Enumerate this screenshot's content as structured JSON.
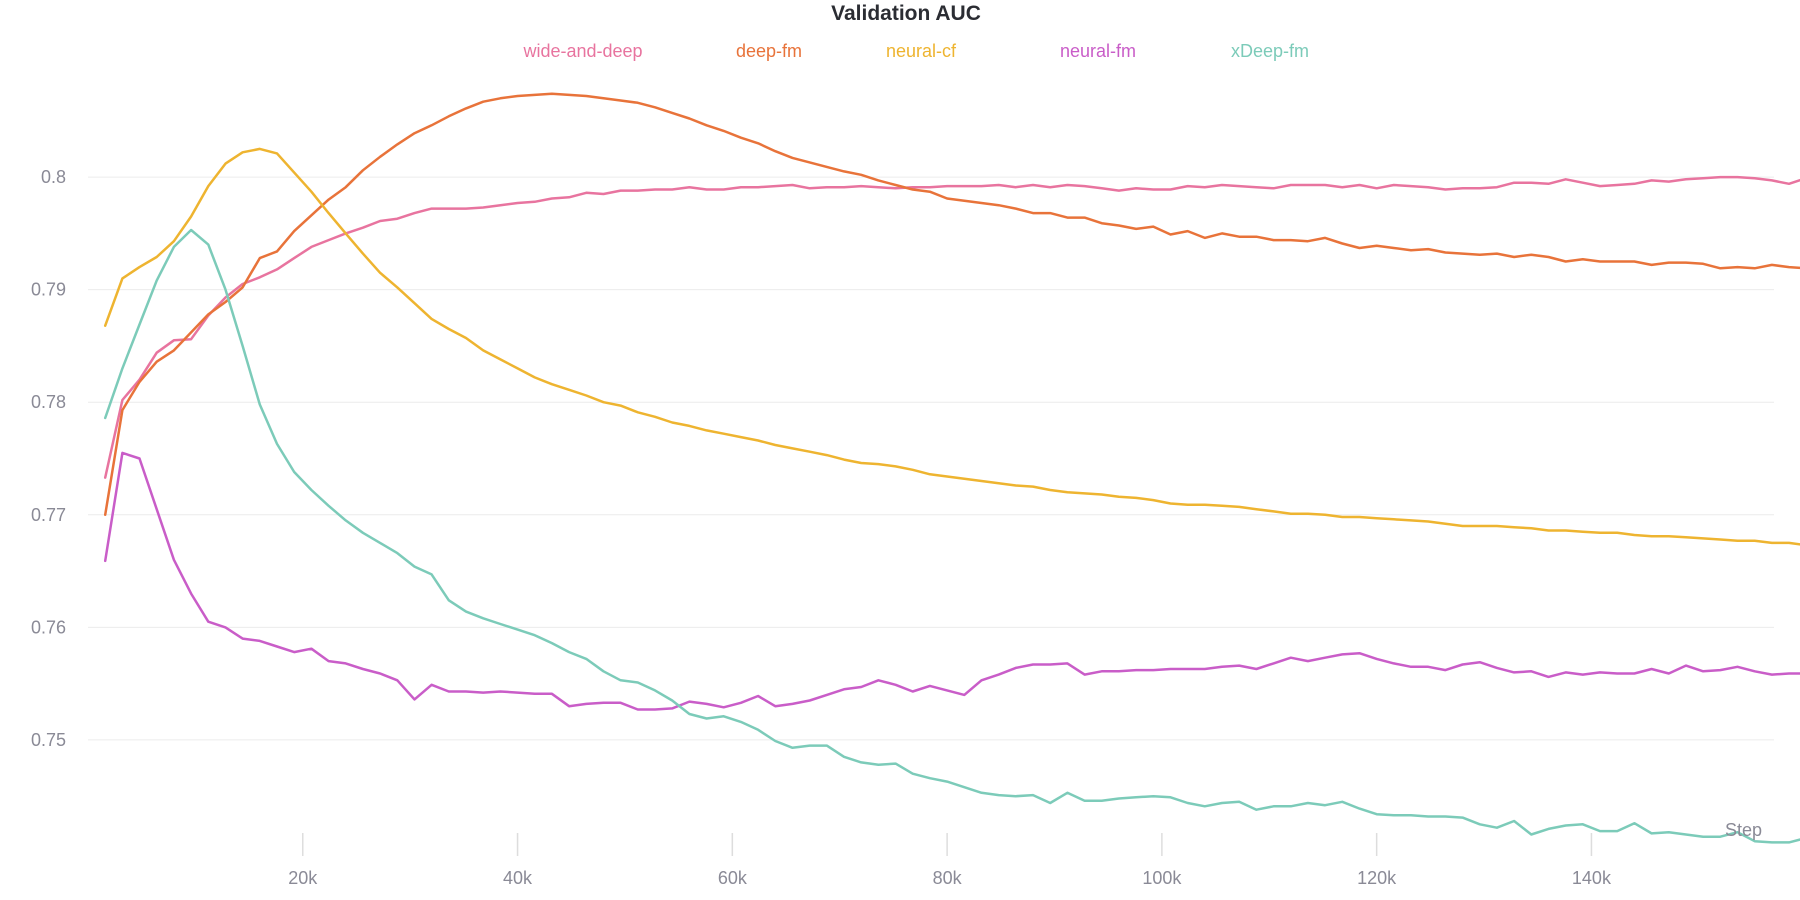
{
  "chart_data": {
    "type": "line",
    "title": "Validation AUC",
    "xlabel": "Step",
    "ylabel": "",
    "xlim": [
      0,
      157000
    ],
    "ylim": [
      0.7388,
      0.8104
    ],
    "grid": true,
    "legend_position": "top-center",
    "x_ticks": [
      20000,
      40000,
      60000,
      80000,
      100000,
      120000,
      140000
    ],
    "x_tick_labels": [
      "20k",
      "40k",
      "60k",
      "80k",
      "100k",
      "120k",
      "140k"
    ],
    "y_ticks": [
      0.75,
      0.76,
      0.77,
      0.78,
      0.79,
      0.8
    ],
    "y_tick_labels": [
      "0.75",
      "0.76",
      "0.77",
      "0.78",
      "0.79",
      "0.8"
    ],
    "x_start": 1600,
    "x_step": 1600,
    "series": [
      {
        "name": "wide-and-deep",
        "color": "#e8749f",
        "values": [
          0.7733,
          0.7802,
          0.782,
          0.7844,
          0.7855,
          0.7856,
          0.7877,
          0.7893,
          0.7905,
          0.7911,
          0.7918,
          0.7928,
          0.7938,
          0.7944,
          0.795,
          0.7955,
          0.7961,
          0.7963,
          0.7968,
          0.7972,
          0.7972,
          0.7972,
          0.7973,
          0.7975,
          0.7977,
          0.7978,
          0.7981,
          0.7982,
          0.7986,
          0.7985,
          0.7988,
          0.7988,
          0.7989,
          0.7989,
          0.7991,
          0.7989,
          0.7989,
          0.7991,
          0.7991,
          0.7992,
          0.7993,
          0.799,
          0.7991,
          0.7991,
          0.7992,
          0.7991,
          0.799,
          0.7991,
          0.7991,
          0.7992,
          0.7992,
          0.7992,
          0.7993,
          0.7991,
          0.7993,
          0.7991,
          0.7993,
          0.7992,
          0.799,
          0.7988,
          0.799,
          0.7989,
          0.7989,
          0.7992,
          0.7991,
          0.7993,
          0.7992,
          0.7991,
          0.799,
          0.7993,
          0.7993,
          0.7993,
          0.7991,
          0.7993,
          0.799,
          0.7993,
          0.7992,
          0.7991,
          0.7989,
          0.799,
          0.799,
          0.7991,
          0.7995,
          0.7995,
          0.7994,
          0.7998,
          0.7995,
          0.7992,
          0.7993,
          0.7994,
          0.7997,
          0.7996,
          0.7998,
          0.7999,
          0.8,
          0.8,
          0.7999,
          0.7997,
          0.7994,
          0.7999,
          0.7996
        ]
      },
      {
        "name": "deep-fm",
        "color": "#e8733a",
        "values": [
          0.77,
          0.7793,
          0.7818,
          0.7836,
          0.7846,
          0.7862,
          0.7878,
          0.7889,
          0.7902,
          0.7928,
          0.7934,
          0.7952,
          0.7966,
          0.798,
          0.7991,
          0.8006,
          0.8018,
          0.8029,
          0.8039,
          0.8046,
          0.8054,
          0.8061,
          0.8067,
          0.807,
          0.8072,
          0.8073,
          0.8074,
          0.8073,
          0.8072,
          0.807,
          0.8068,
          0.8066,
          0.8062,
          0.8057,
          0.8052,
          0.8046,
          0.8041,
          0.8035,
          0.803,
          0.8023,
          0.8017,
          0.8013,
          0.8009,
          0.8005,
          0.8002,
          0.7997,
          0.7993,
          0.7989,
          0.7987,
          0.7981,
          0.7979,
          0.7977,
          0.7975,
          0.7972,
          0.7968,
          0.7968,
          0.7964,
          0.7964,
          0.7959,
          0.7957,
          0.7954,
          0.7956,
          0.7949,
          0.7952,
          0.7946,
          0.795,
          0.7947,
          0.7947,
          0.7944,
          0.7944,
          0.7943,
          0.7946,
          0.7941,
          0.7937,
          0.7939,
          0.7937,
          0.7935,
          0.7936,
          0.7933,
          0.7932,
          0.7931,
          0.7932,
          0.7929,
          0.7931,
          0.7929,
          0.7925,
          0.7927,
          0.7925,
          0.7925,
          0.7925,
          0.7922,
          0.7924,
          0.7924,
          0.7923,
          0.7919,
          0.792,
          0.7919,
          0.7922,
          0.792,
          0.7919,
          0.7918
        ]
      },
      {
        "name": "neural-cf",
        "color": "#eeb430",
        "values": [
          0.7868,
          0.791,
          0.792,
          0.7929,
          0.7943,
          0.7965,
          0.7992,
          0.8012,
          0.8022,
          0.8025,
          0.8021,
          0.8004,
          0.7987,
          0.7968,
          0.795,
          0.7932,
          0.7915,
          0.7902,
          0.7888,
          0.7874,
          0.7865,
          0.7857,
          0.7846,
          0.7838,
          0.783,
          0.7822,
          0.7816,
          0.7811,
          0.7806,
          0.78,
          0.7797,
          0.7791,
          0.7787,
          0.7782,
          0.7779,
          0.7775,
          0.7772,
          0.7769,
          0.7766,
          0.7762,
          0.7759,
          0.7756,
          0.7753,
          0.7749,
          0.7746,
          0.7745,
          0.7743,
          0.774,
          0.7736,
          0.7734,
          0.7732,
          0.773,
          0.7728,
          0.7726,
          0.7725,
          0.7722,
          0.772,
          0.7719,
          0.7718,
          0.7716,
          0.7715,
          0.7713,
          0.771,
          0.7709,
          0.7709,
          0.7708,
          0.7707,
          0.7705,
          0.7703,
          0.7701,
          0.7701,
          0.77,
          0.7698,
          0.7698,
          0.7697,
          0.7696,
          0.7695,
          0.7694,
          0.7692,
          0.769,
          0.769,
          0.769,
          0.7689,
          0.7688,
          0.7686,
          0.7686,
          0.7685,
          0.7684,
          0.7684,
          0.7682,
          0.7681,
          0.7681,
          0.768,
          0.7679,
          0.7678,
          0.7677,
          0.7677,
          0.7675,
          0.7675,
          0.7673,
          0.7673
        ]
      },
      {
        "name": "neural-fm",
        "color": "#c95dc8",
        "values": [
          0.7659,
          0.7755,
          0.775,
          0.7705,
          0.766,
          0.763,
          0.7605,
          0.76,
          0.759,
          0.7588,
          0.7583,
          0.7578,
          0.7581,
          0.757,
          0.7568,
          0.7563,
          0.7559,
          0.7553,
          0.7536,
          0.7549,
          0.7543,
          0.7543,
          0.7542,
          0.7543,
          0.7542,
          0.7541,
          0.7541,
          0.753,
          0.7532,
          0.7533,
          0.7533,
          0.7527,
          0.7527,
          0.7528,
          0.7534,
          0.7532,
          0.7529,
          0.7533,
          0.7539,
          0.753,
          0.7532,
          0.7535,
          0.754,
          0.7545,
          0.7547,
          0.7553,
          0.7549,
          0.7543,
          0.7548,
          0.7544,
          0.754,
          0.7553,
          0.7558,
          0.7564,
          0.7567,
          0.7567,
          0.7568,
          0.7558,
          0.7561,
          0.7561,
          0.7562,
          0.7562,
          0.7563,
          0.7563,
          0.7563,
          0.7565,
          0.7566,
          0.7563,
          0.7568,
          0.7573,
          0.757,
          0.7573,
          0.7576,
          0.7577,
          0.7572,
          0.7568,
          0.7565,
          0.7565,
          0.7562,
          0.7567,
          0.7569,
          0.7564,
          0.756,
          0.7561,
          0.7556,
          0.756,
          0.7558,
          0.756,
          0.7559,
          0.7559,
          0.7563,
          0.7559,
          0.7566,
          0.7561,
          0.7562,
          0.7565,
          0.7561,
          0.7558,
          0.7559,
          0.7559,
          0.7559
        ]
      },
      {
        "name": "xDeep-fm",
        "color": "#7ccbb9",
        "values": [
          0.7786,
          0.783,
          0.7869,
          0.7908,
          0.7938,
          0.7953,
          0.794,
          0.79,
          0.785,
          0.7798,
          0.7763,
          0.7738,
          0.7722,
          0.7708,
          0.7695,
          0.7684,
          0.7675,
          0.7666,
          0.7654,
          0.7647,
          0.7624,
          0.7614,
          0.7608,
          0.7603,
          0.7598,
          0.7593,
          0.7586,
          0.7578,
          0.7572,
          0.7561,
          0.7553,
          0.7551,
          0.7544,
          0.7535,
          0.7523,
          0.7519,
          0.7521,
          0.7516,
          0.7509,
          0.7499,
          0.7493,
          0.7495,
          0.7495,
          0.7485,
          0.748,
          0.7478,
          0.7479,
          0.747,
          0.7466,
          0.7463,
          0.7458,
          0.7453,
          0.7451,
          0.745,
          0.7451,
          0.7444,
          0.7453,
          0.7446,
          0.7446,
          0.7448,
          0.7449,
          0.745,
          0.7449,
          0.7444,
          0.7441,
          0.7444,
          0.7445,
          0.7438,
          0.7441,
          0.7441,
          0.7444,
          0.7442,
          0.7445,
          0.7439,
          0.7434,
          0.7433,
          0.7433,
          0.7432,
          0.7432,
          0.7431,
          0.7425,
          0.7422,
          0.7428,
          0.7416,
          0.7421,
          0.7424,
          0.7425,
          0.7419,
          0.7419,
          0.7426,
          0.7417,
          0.7418,
          0.7416,
          0.7414,
          0.7414,
          0.7418,
          0.741,
          0.7409,
          0.7409,
          0.7413,
          0.741
        ]
      }
    ]
  }
}
